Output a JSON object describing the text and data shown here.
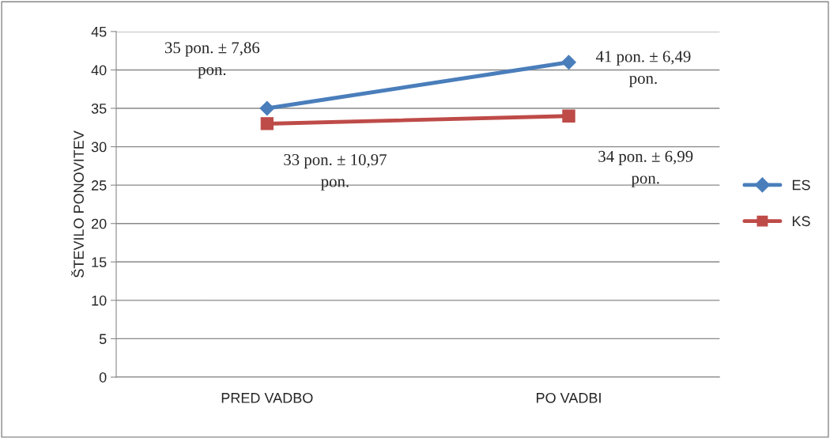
{
  "chart_data": {
    "type": "line",
    "ylabel": "ŠTEVILO PONOVITEV",
    "categories": [
      "PRED VADBO",
      "PO VADBI"
    ],
    "series": [
      {
        "name": "ES",
        "color": "#4a7ebb",
        "marker": "diamond",
        "values": [
          35,
          41
        ],
        "value_labels": [
          "35 pon. ± 7,86\npon.",
          "41 pon. ± 6,49\npon."
        ]
      },
      {
        "name": "KS",
        "color": "#be4b48",
        "marker": "square",
        "values": [
          33,
          34
        ],
        "value_labels": [
          "33 pon. ± 10,97\npon.",
          "34 pon. ± 6,99\npon."
        ]
      }
    ],
    "ylim": [
      0,
      45
    ],
    "yticks": [
      0,
      5,
      10,
      15,
      20,
      25,
      30,
      35,
      40,
      45
    ],
    "grid": "y",
    "legend": "right",
    "line_style": "solid"
  }
}
